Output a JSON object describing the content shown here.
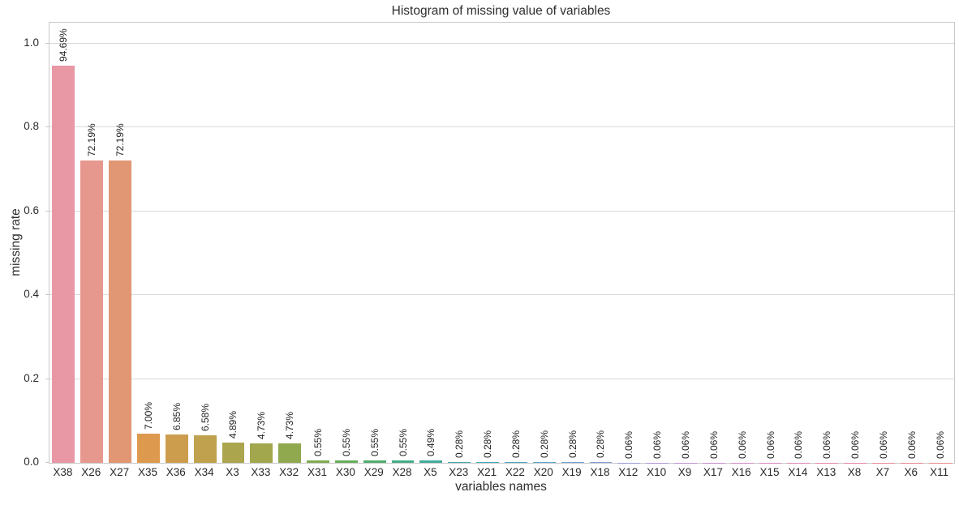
{
  "chart_data": {
    "type": "bar",
    "title": "Histogram of missing value of variables",
    "xlabel": "variables names",
    "ylabel": "missing rate",
    "categories": [
      "X38",
      "X26",
      "X27",
      "X35",
      "X36",
      "X34",
      "X3",
      "X33",
      "X32",
      "X31",
      "X30",
      "X29",
      "X28",
      "X5",
      "X23",
      "X21",
      "X22",
      "X20",
      "X19",
      "X18",
      "X12",
      "X10",
      "X9",
      "X17",
      "X16",
      "X15",
      "X14",
      "X13",
      "X8",
      "X7",
      "X6",
      "X11"
    ],
    "values": [
      0.9469,
      0.7219,
      0.7219,
      0.07,
      0.0685,
      0.0658,
      0.0489,
      0.0473,
      0.0473,
      0.0055,
      0.0055,
      0.0055,
      0.0055,
      0.0049,
      0.0028,
      0.0028,
      0.0028,
      0.0028,
      0.0028,
      0.0028,
      0.0006,
      0.0006,
      0.0006,
      0.0006,
      0.0006,
      0.0006,
      0.0006,
      0.0006,
      0.0006,
      0.0006,
      0.0006,
      0.0006
    ],
    "value_labels": [
      "94.69%",
      "72.19%",
      "72.19%",
      "7.00%",
      "6.85%",
      "6.58%",
      "4.89%",
      "4.73%",
      "4.73%",
      "0.55%",
      "0.55%",
      "0.55%",
      "0.55%",
      "0.49%",
      "0.28%",
      "0.28%",
      "0.28%",
      "0.28%",
      "0.28%",
      "0.28%",
      "0.06%",
      "0.06%",
      "0.06%",
      "0.06%",
      "0.06%",
      "0.06%",
      "0.06%",
      "0.06%",
      "0.06%",
      "0.06%",
      "0.06%",
      "0.06%"
    ],
    "colors": [
      "#e898a4",
      "#e6988e",
      "#e19674",
      "#dd9a4f",
      "#cd9d4e",
      "#c0a14e",
      "#aba54e",
      "#a2a74e",
      "#90a94e",
      "#7fab4f",
      "#66ad5a",
      "#4fae6e",
      "#44ad85",
      "#41ac99",
      "#3fabaa",
      "#3ea9b6",
      "#4aa8c1",
      "#5ba6ca",
      "#70a3d1",
      "#87a0d5",
      "#9b9bd7",
      "#ac96d6",
      "#bb92d3",
      "#c88ecd",
      "#d28bc6",
      "#da89bd",
      "#e087b3",
      "#e486a9",
      "#e6869f",
      "#e78795",
      "#e78892",
      "#e88a89"
    ],
    "yticks": [
      "0.0",
      "0.2",
      "0.4",
      "0.6",
      "0.8",
      "1.0"
    ],
    "ylim": [
      0,
      1.05
    ],
    "grid": true,
    "legend": "none",
    "ui_colors": {
      "background": "#ffffff",
      "grid": "#d9d9d9",
      "spine": "#c9c9c9",
      "axis_text": "#2b2b2b",
      "title_text": "#2e2e2e",
      "value_label_text": "#1f1f1f"
    }
  }
}
